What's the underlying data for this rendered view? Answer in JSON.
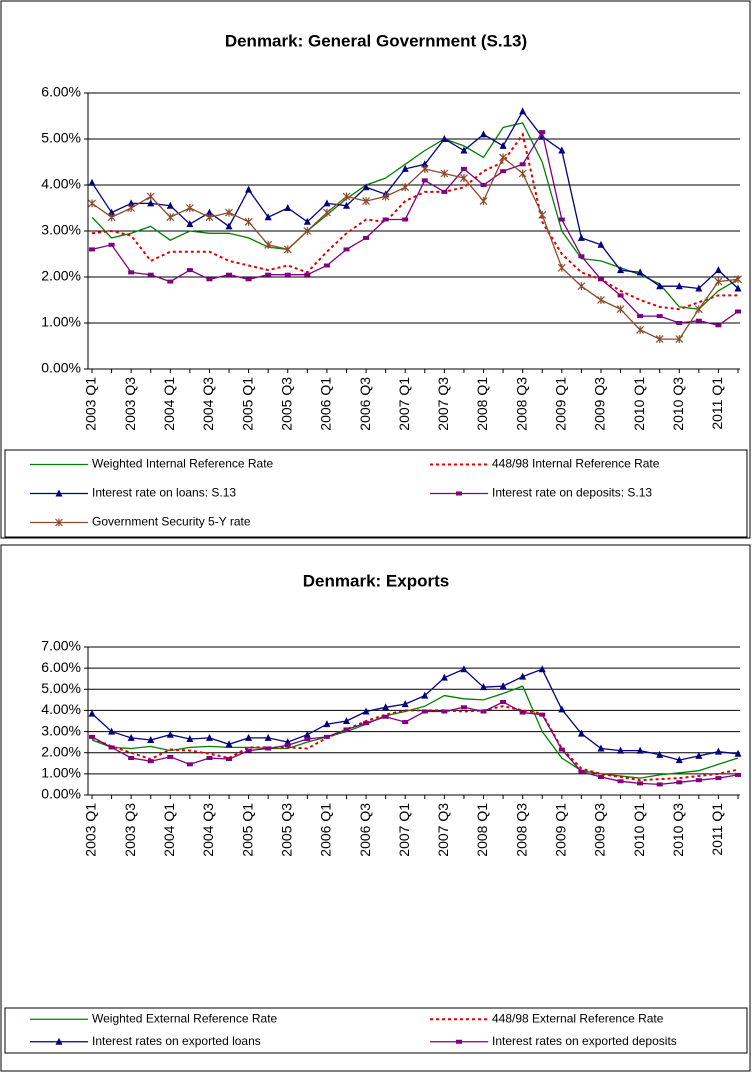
{
  "chart_data": [
    {
      "type": "line",
      "title": "Denmark: General Government (S.13)",
      "categories": [
        "2003 Q1",
        null,
        "2003 Q3",
        null,
        "2004 Q1",
        null,
        "2004 Q3",
        null,
        "2005 Q1",
        null,
        "2005 Q3",
        null,
        "2006 Q1",
        null,
        "2006 Q3",
        null,
        "2007 Q1",
        null,
        "2007 Q3",
        null,
        "2008 Q1",
        null,
        "2008 Q3",
        null,
        "2009 Q1",
        null,
        "2009 Q3",
        null,
        "2010 Q1",
        null,
        "2010 Q3",
        null,
        "2011 Q1",
        null
      ],
      "ylim": [
        0,
        6
      ],
      "yticks": [
        {
          "value": 0,
          "label": "0.00%"
        },
        {
          "value": 1,
          "label": "1.00%"
        },
        {
          "value": 2,
          "label": "2.00%"
        },
        {
          "value": 3,
          "label": "3.00%"
        },
        {
          "value": 4,
          "label": "4.00%"
        },
        {
          "value": 5,
          "label": "5.00%"
        },
        {
          "value": 6,
          "label": "6.00%"
        }
      ],
      "grid": true,
      "series": [
        {
          "name": "Weighted Internal Reference Rate",
          "color": "#008000",
          "values": [
            3.3,
            2.85,
            2.95,
            3.1,
            2.8,
            3.0,
            2.95,
            2.95,
            2.85,
            2.65,
            2.6,
            3.0,
            3.35,
            3.7,
            4.0,
            4.15,
            4.45,
            4.75,
            5.0,
            4.85,
            4.6,
            5.25,
            5.35,
            4.5,
            3.0,
            2.4,
            2.35,
            2.2,
            2.05,
            1.85,
            1.35,
            1.3,
            1.7,
            1.95
          ]
        },
        {
          "name": "448/98 Internal Reference Rate",
          "color": "#e00000",
          "values": [
            2.95,
            3.0,
            2.9,
            2.35,
            2.55,
            2.55,
            2.55,
            2.35,
            2.25,
            2.15,
            2.25,
            2.1,
            2.55,
            2.95,
            3.25,
            3.2,
            3.65,
            3.85,
            3.85,
            3.95,
            4.3,
            4.5,
            5.1,
            3.2,
            2.5,
            2.1,
            1.95,
            1.7,
            1.5,
            1.35,
            1.3,
            1.45,
            1.6,
            1.6
          ]
        },
        {
          "name": "Interest rate on loans: S.13",
          "color": "#000080",
          "values": [
            4.05,
            3.4,
            3.6,
            3.6,
            3.55,
            3.15,
            3.4,
            3.1,
            3.9,
            3.3,
            3.5,
            3.2,
            3.6,
            3.55,
            3.95,
            3.8,
            4.35,
            4.45,
            5.0,
            4.75,
            5.1,
            4.85,
            5.6,
            5.05,
            4.75,
            2.85,
            2.7,
            2.15,
            2.1,
            1.8,
            1.8,
            1.75,
            2.15,
            1.75
          ]
        },
        {
          "name": "Interest rate on deposits: S.13",
          "color": "#800080",
          "values": [
            2.6,
            2.7,
            2.1,
            2.05,
            1.9,
            2.15,
            1.95,
            2.05,
            1.95,
            2.05,
            2.05,
            2.05,
            2.25,
            2.6,
            2.85,
            3.25,
            3.25,
            4.1,
            3.85,
            4.35,
            4.0,
            4.3,
            4.45,
            5.15,
            3.25,
            2.45,
            1.95,
            1.6,
            1.15,
            1.15,
            1.0,
            1.05,
            0.95,
            1.25
          ]
        },
        {
          "name": "Government Security 5-Y rate",
          "color": "#8b4a2b",
          "values": [
            3.6,
            3.3,
            3.5,
            3.75,
            3.3,
            3.5,
            3.3,
            3.4,
            3.2,
            2.7,
            2.6,
            3.0,
            3.4,
            3.75,
            3.65,
            3.75,
            3.95,
            4.35,
            4.25,
            4.15,
            3.65,
            4.6,
            4.25,
            3.35,
            2.2,
            1.8,
            1.5,
            1.3,
            0.85,
            0.65,
            0.65,
            1.3,
            1.9,
            1.95
          ]
        }
      ]
    },
    {
      "type": "line",
      "title": "Denmark: Exports",
      "categories": [
        "2003 Q1",
        null,
        "2003 Q3",
        null,
        "2004 Q1",
        null,
        "2004 Q3",
        null,
        "2005 Q1",
        null,
        "2005 Q3",
        null,
        "2006 Q1",
        null,
        "2006 Q3",
        null,
        "2007 Q1",
        null,
        "2007 Q3",
        null,
        "2008 Q1",
        null,
        "2008 Q3",
        null,
        "2009 Q1",
        null,
        "2009 Q3",
        null,
        "2010 Q1",
        null,
        "2010 Q3",
        null,
        "2011 Q1",
        null
      ],
      "ylim": [
        0,
        7
      ],
      "yticks": [
        {
          "value": 0,
          "label": "0.00%"
        },
        {
          "value": 1,
          "label": "1.00%"
        },
        {
          "value": 2,
          "label": "2.00%"
        },
        {
          "value": 3,
          "label": "3.00%"
        },
        {
          "value": 4,
          "label": "4.00%"
        },
        {
          "value": 5,
          "label": "5.00%"
        },
        {
          "value": 6,
          "label": "6.00%"
        },
        {
          "value": 7,
          "label": "7.00%"
        }
      ],
      "grid": true,
      "series": [
        {
          "name": "Weighted External Reference Rate",
          "color": "#008000",
          "values": [
            2.6,
            2.25,
            2.2,
            2.3,
            2.1,
            2.25,
            2.3,
            2.25,
            2.25,
            2.2,
            2.2,
            2.5,
            2.75,
            3.0,
            3.35,
            3.75,
            3.95,
            4.2,
            4.7,
            4.55,
            4.5,
            4.8,
            5.15,
            3.0,
            1.75,
            1.15,
            1.0,
            0.9,
            0.8,
            0.95,
            1.05,
            1.15,
            1.45,
            1.75
          ]
        },
        {
          "name": "448/98 External Reference Rate",
          "color": "#e00000",
          "values": [
            2.7,
            2.3,
            2.0,
            1.7,
            2.15,
            2.1,
            1.95,
            1.75,
            2.25,
            2.25,
            2.25,
            2.2,
            2.7,
            3.1,
            3.5,
            3.8,
            4.0,
            4.0,
            4.0,
            3.95,
            4.0,
            4.2,
            4.0,
            3.85,
            2.2,
            1.25,
            1.0,
            0.85,
            0.7,
            0.75,
            0.8,
            0.9,
            1.0,
            1.2
          ]
        },
        {
          "name": "Interest rates on exported loans",
          "color": "#000080",
          "values": [
            3.85,
            3.0,
            2.7,
            2.6,
            2.85,
            2.65,
            2.7,
            2.4,
            2.7,
            2.7,
            2.5,
            2.85,
            3.35,
            3.5,
            3.95,
            4.15,
            4.3,
            4.7,
            5.55,
            5.95,
            5.1,
            5.15,
            5.6,
            5.95,
            4.05,
            2.9,
            2.2,
            2.1,
            2.1,
            1.9,
            1.65,
            1.85,
            2.05,
            1.95
          ]
        },
        {
          "name": "Interest rates on exported deposits",
          "color": "#800080",
          "values": [
            2.75,
            2.25,
            1.75,
            1.6,
            1.8,
            1.45,
            1.75,
            1.7,
            2.1,
            2.2,
            2.35,
            2.65,
            2.75,
            3.1,
            3.4,
            3.7,
            3.45,
            3.95,
            3.95,
            4.15,
            3.95,
            4.4,
            3.9,
            3.8,
            2.15,
            1.1,
            0.85,
            0.65,
            0.55,
            0.5,
            0.6,
            0.7,
            0.8,
            0.95
          ]
        }
      ]
    }
  ]
}
